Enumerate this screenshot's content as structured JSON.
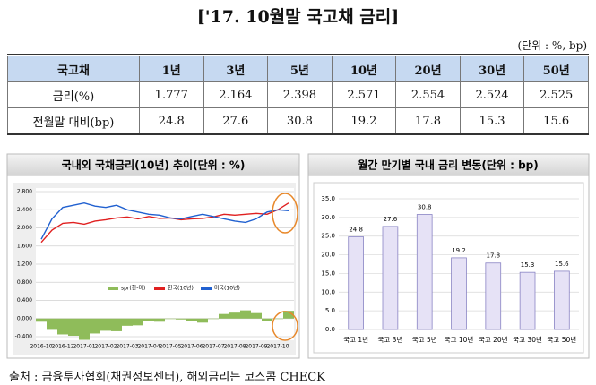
{
  "title": "['17. 10월말 국고채 금리]",
  "unit": "(단위 : %, bp)",
  "table": {
    "header": [
      "국고채",
      "1년",
      "3년",
      "5년",
      "10년",
      "20년",
      "30년",
      "50년"
    ],
    "rows": [
      [
        "금리(%)",
        1.777,
        2.164,
        2.398,
        2.571,
        2.554,
        2.524,
        2.525
      ],
      [
        "전월말 대비(bp)",
        24.8,
        27.6,
        30.8,
        19.2,
        17.8,
        15.3,
        15.6
      ]
    ]
  },
  "chart_data": [
    {
      "type": "line",
      "title": "국내외 국채금리(10년) 추이(단위 : %)",
      "categories": [
        "2016-10",
        null,
        "2016-12",
        null,
        "2017-01",
        null,
        "2017-02",
        null,
        "2017-03",
        null,
        "2017-04",
        null,
        "2017-05",
        null,
        "2017-06",
        null,
        "2017-07",
        null,
        "2017-08",
        null,
        "2017-09",
        null,
        "2017-10",
        null
      ],
      "series": [
        {
          "name": "spr(한-미)",
          "color": "#8fbc5a",
          "style": "bar",
          "values": [
            -0.07,
            -0.25,
            -0.35,
            -0.38,
            -0.47,
            -0.33,
            -0.27,
            -0.28,
            -0.16,
            -0.15,
            -0.05,
            -0.07,
            0.0,
            -0.02,
            -0.05,
            -0.09,
            -0.01,
            0.1,
            0.13,
            0.18,
            0.12,
            -0.05,
            0.0,
            0.17
          ]
        },
        {
          "name": "한국(10년)",
          "color": "#e02020",
          "style": "line",
          "values": [
            1.68,
            1.95,
            2.1,
            2.12,
            2.08,
            2.15,
            2.18,
            2.22,
            2.24,
            2.2,
            2.25,
            2.21,
            2.22,
            2.18,
            2.2,
            2.21,
            2.24,
            2.3,
            2.28,
            2.3,
            2.32,
            2.3,
            2.4,
            2.55
          ]
        },
        {
          "name": "미국(10년)",
          "color": "#2060d0",
          "style": "line",
          "values": [
            1.75,
            2.2,
            2.45,
            2.5,
            2.55,
            2.48,
            2.45,
            2.5,
            2.4,
            2.35,
            2.3,
            2.28,
            2.22,
            2.2,
            2.25,
            2.3,
            2.25,
            2.2,
            2.15,
            2.12,
            2.2,
            2.35,
            2.4,
            2.38
          ]
        }
      ],
      "ylim": [
        -0.4,
        2.8
      ],
      "yticks": [
        {
          "value": 2.8,
          "label": "2.800"
        },
        {
          "value": 2.4,
          "label": "2.400"
        },
        {
          "value": 2.0,
          "label": "2.000"
        },
        {
          "value": 1.6,
          "label": "1.600"
        },
        {
          "value": 1.2,
          "label": "1.200"
        },
        {
          "value": 0.8,
          "label": "0.800"
        },
        {
          "value": 0.4,
          "label": "0.400"
        },
        {
          "value": 0.0,
          "label": "0.000"
        },
        {
          "value": -0.4,
          "label": "-0.400"
        }
      ],
      "grid": true
    },
    {
      "type": "bar",
      "title": "월간 만기별 국내 금리 변동(단위 : bp)",
      "categories": [
        "국고 1년",
        "국고 3년",
        "국고 5년",
        "국고 10년",
        "국고 20년",
        "국고 30년",
        "국고 50년"
      ],
      "values": [
        24.8,
        27.6,
        30.8,
        19.2,
        17.8,
        15.3,
        15.6
      ],
      "color": "#e6e2f6",
      "ylim": [
        0,
        35
      ],
      "yticks": [
        {
          "value": 0,
          "label": "0.0"
        },
        {
          "value": 5,
          "label": "5.0"
        },
        {
          "value": 10,
          "label": "10.0"
        },
        {
          "value": 15,
          "label": "15.0"
        },
        {
          "value": 20,
          "label": "20.0"
        },
        {
          "value": 25,
          "label": "25.0"
        },
        {
          "value": 30,
          "label": "30.0"
        },
        {
          "value": 35,
          "label": "35.0"
        }
      ],
      "grid": true
    }
  ],
  "footer": "출처 : 금융투자협회(채권정보센터), 해외금리는 코스콤 CHECK"
}
